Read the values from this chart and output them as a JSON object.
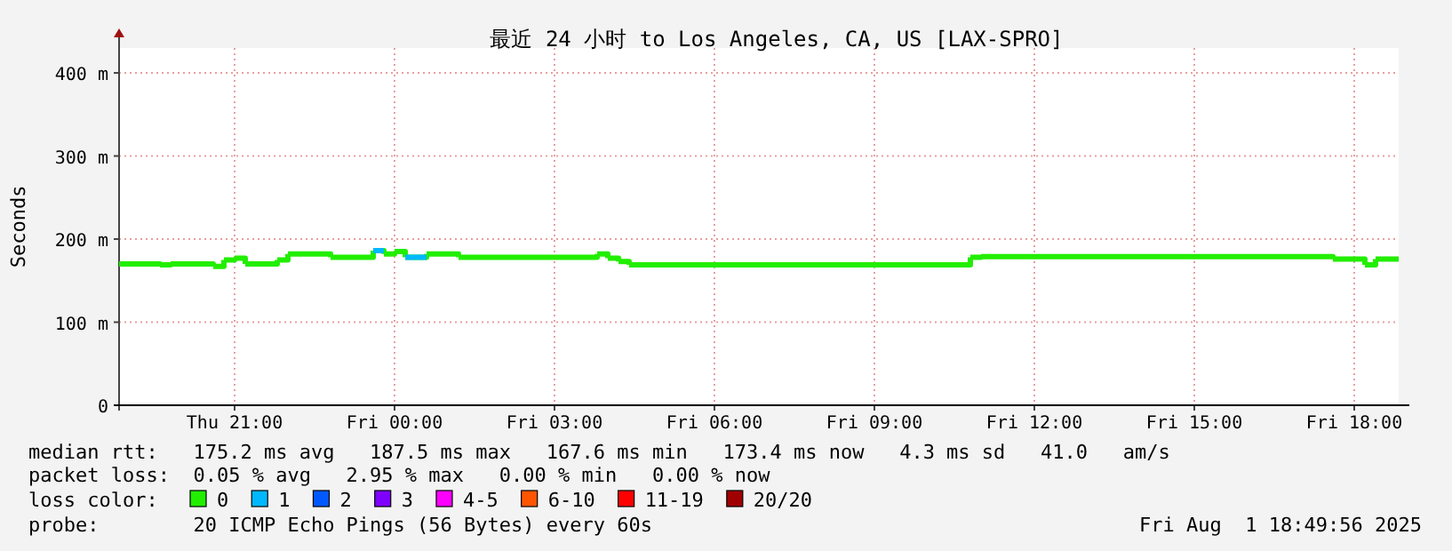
{
  "chart_data": {
    "type": "step",
    "title": "最近 24 小时 to Los Angeles, CA, US [LAX-SPRO]",
    "ylabel": "Seconds",
    "legend_title": "loss color:",
    "xlim": [
      "2025-07-31T18:50",
      "2025-08-01T18:50"
    ],
    "ylim": [
      0,
      430
    ],
    "xticks": [
      {
        "value": "2025-07-31T21:00",
        "label": "Thu 21:00"
      },
      {
        "value": "2025-08-01T00:00",
        "label": "Fri 00:00"
      },
      {
        "value": "2025-08-01T03:00",
        "label": "Fri 03:00"
      },
      {
        "value": "2025-08-01T06:00",
        "label": "Fri 06:00"
      },
      {
        "value": "2025-08-01T09:00",
        "label": "Fri 09:00"
      },
      {
        "value": "2025-08-01T12:00",
        "label": "Fri 12:00"
      },
      {
        "value": "2025-08-01T15:00",
        "label": "Fri 15:00"
      },
      {
        "value": "2025-08-01T18:00",
        "label": "Fri 18:00"
      }
    ],
    "yticks": [
      0,
      {
        "value": 100,
        "label": "100 m"
      },
      {
        "value": 200,
        "label": "200 m"
      },
      {
        "value": 300,
        "label": "300 m"
      },
      {
        "value": 400,
        "label": "400 m"
      }
    ],
    "grid": true,
    "legend": "bottom",
    "line_style": "solid",
    "series": [
      {
        "name": "0",
        "color": "#22ee00",
        "x": [
          "2025-07-31T18:50",
          "2025-07-31T19:36",
          "2025-07-31T19:48",
          "2025-07-31T20:36",
          "2025-07-31T20:48",
          "2025-07-31T21:00",
          "2025-07-31T21:12",
          "2025-07-31T21:48",
          "2025-07-31T22:00",
          "2025-07-31T22:48",
          "2025-07-31T23:36",
          "2025-07-31T23:48",
          "2025-08-01T00:00",
          "2025-08-01T00:12",
          "2025-08-01T00:36",
          "2025-08-01T01:12",
          "2025-08-01T03:48",
          "2025-08-01T04:00",
          "2025-08-01T04:12",
          "2025-08-01T04:24",
          "2025-08-01T10:48",
          "2025-08-01T11:00",
          "2025-08-01T17:36",
          "2025-08-01T18:12",
          "2025-08-01T18:24",
          "2025-08-01T18:50"
        ],
        "values": [
          170,
          169,
          170,
          167,
          175,
          177,
          170,
          175,
          182,
          178,
          186,
          182,
          185,
          178,
          182,
          178,
          182,
          177,
          173,
          169,
          178,
          179,
          176,
          169,
          176,
          176
        ]
      },
      {
        "name": "1",
        "color": "#00b8ff",
        "x": [
          "2025-07-31T23:36",
          "2025-07-31T23:48",
          "2025-08-01T00:12",
          "2025-08-01T00:36"
        ],
        "values": [
          186,
          null,
          178,
          178
        ]
      },
      {
        "name": "2",
        "color": "#0059ff"
      },
      {
        "name": "3",
        "color": "#7e00ff"
      },
      {
        "name": "4-5",
        "color": "#ff00ff"
      },
      {
        "name": "6-10",
        "color": "#ff5500"
      },
      {
        "name": "11-19",
        "color": "#ff0000"
      },
      {
        "name": "20/20",
        "color": "#a10000"
      }
    ],
    "annotations": [
      "median rtt:   175.2 ms avg   187.5 ms max   167.6 ms min   173.4 ms now   4.3 ms sd   41.0   am/s",
      "packet loss:  0.05 % avg   2.95 % max   0.00 % min   0.00 % now",
      "probe:        20 ICMP Echo Pings (56 Bytes) every 60s",
      "Fri Aug  1 18:49:56 2025"
    ]
  }
}
